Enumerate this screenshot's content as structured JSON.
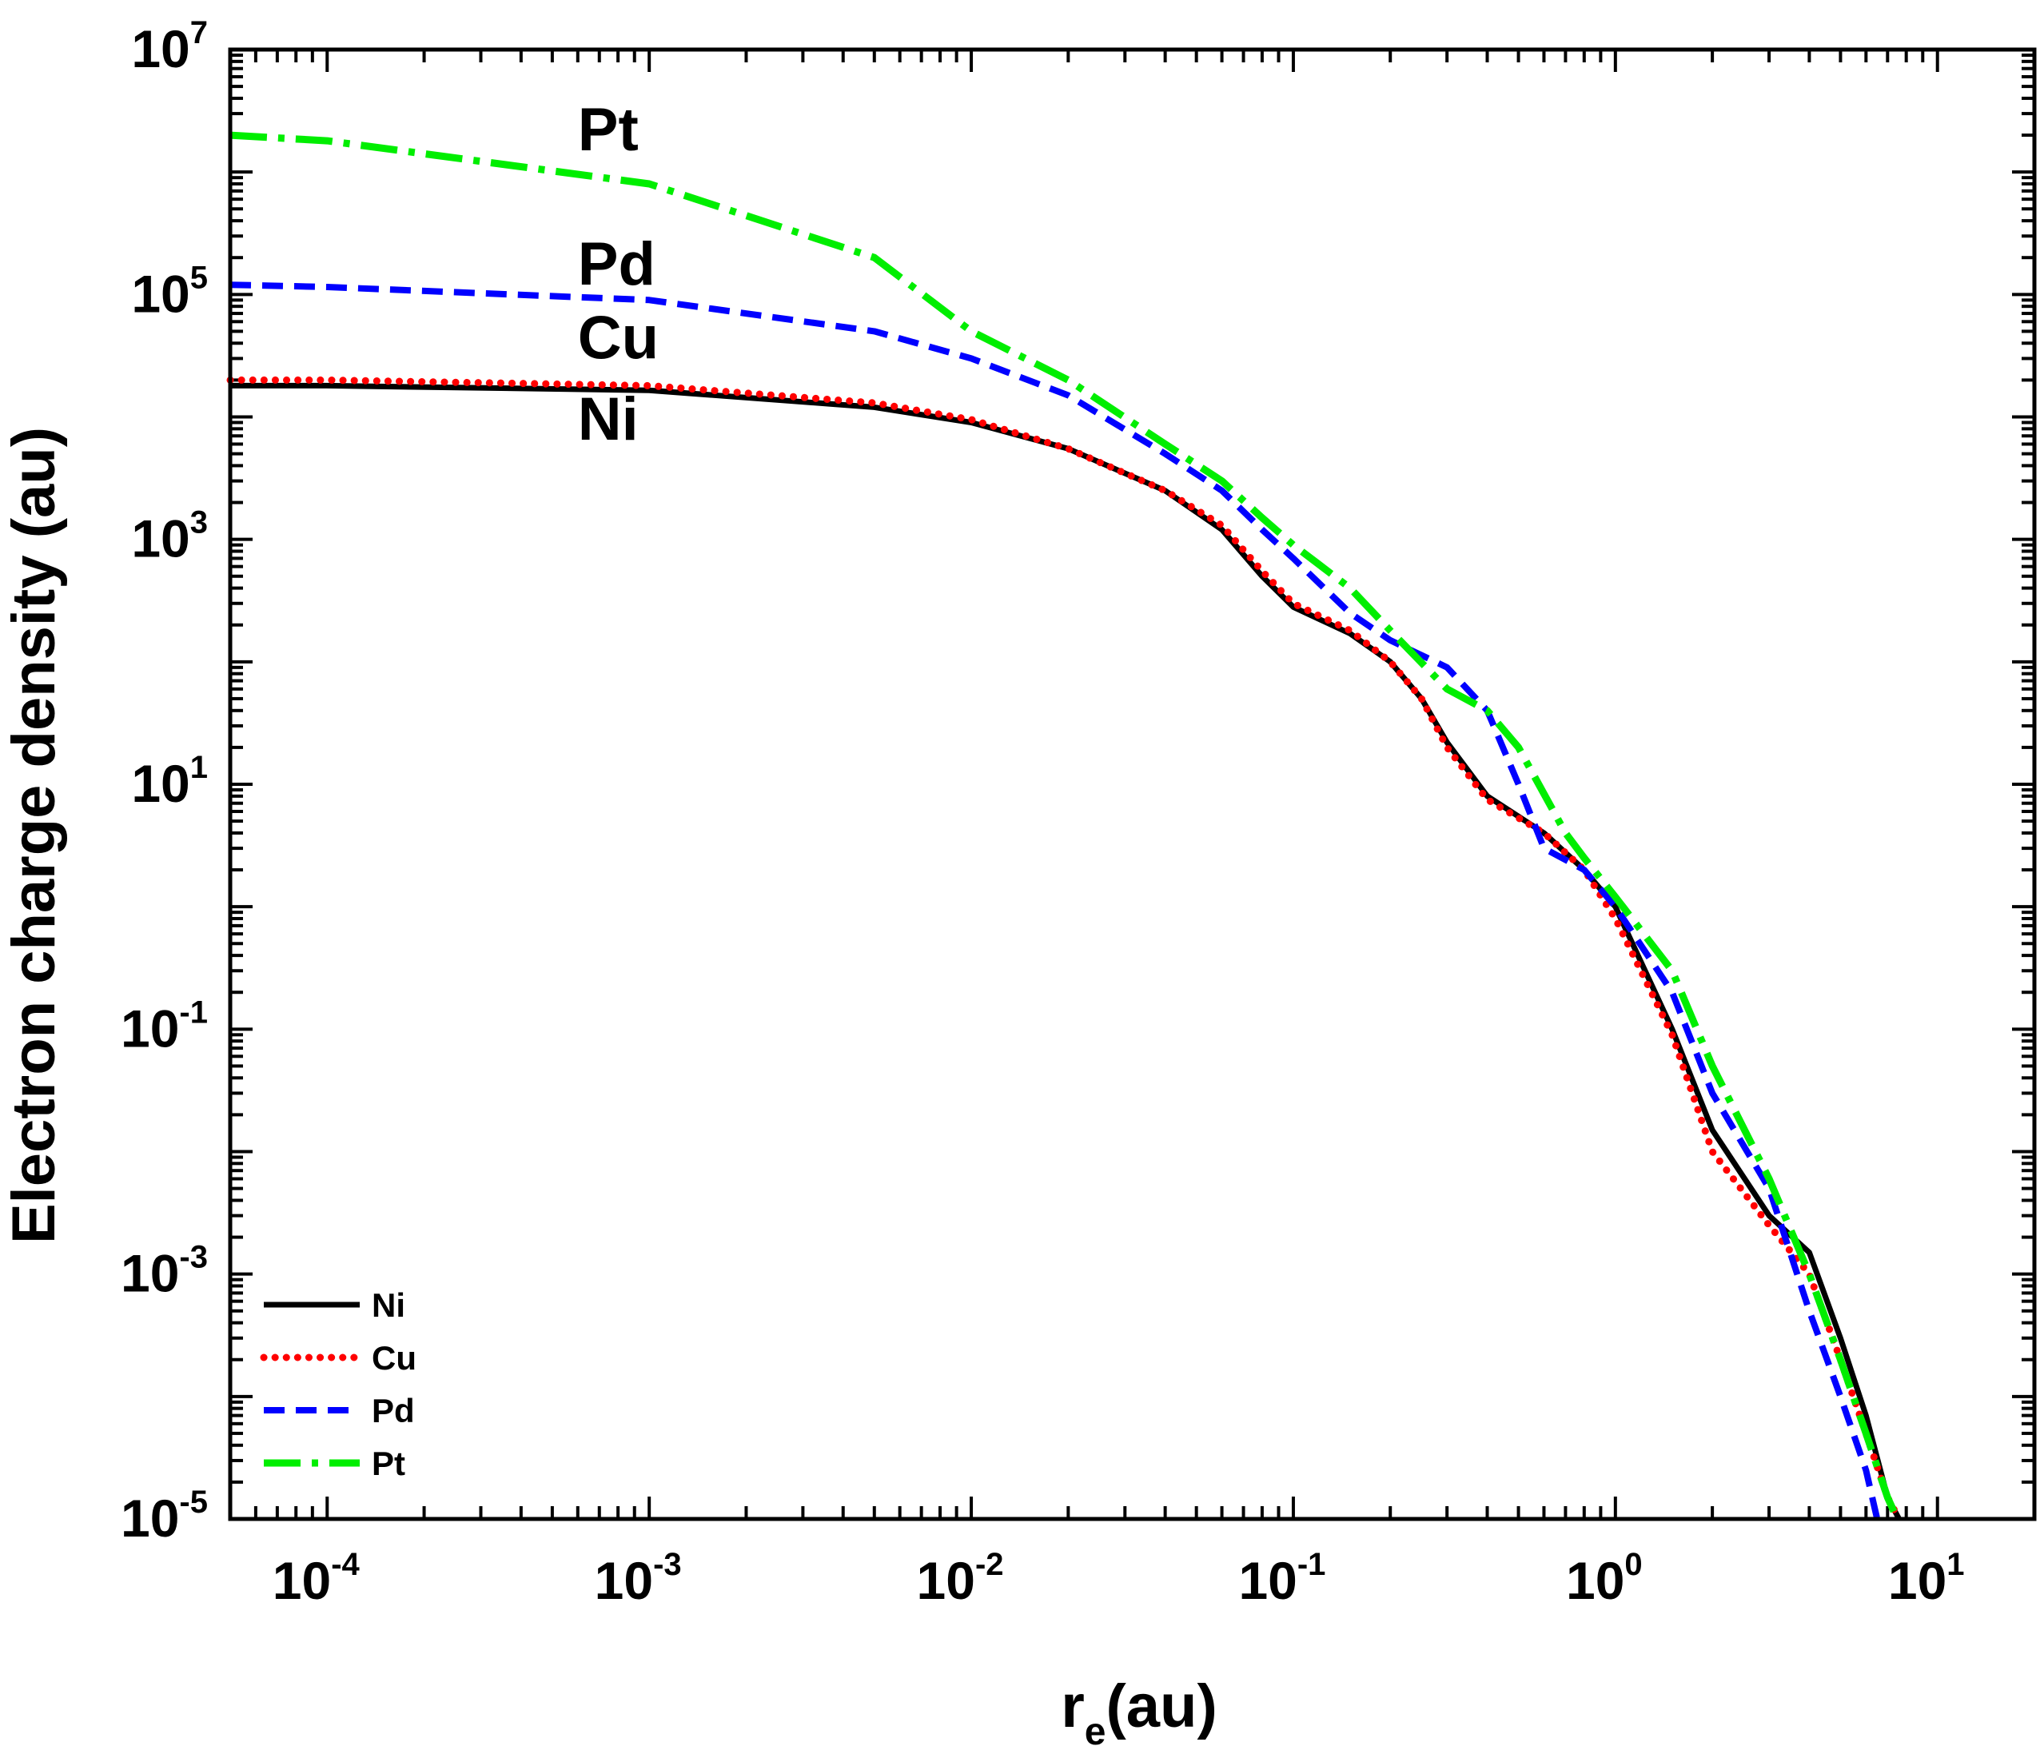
{
  "chart_data": {
    "type": "line",
    "title": "",
    "xlabel": {
      "main": "r",
      "sub": "e",
      "unit": "(au)"
    },
    "ylabel": "Electron charge density (au)",
    "xscale": "log",
    "yscale": "log",
    "xlim": [
      5e-05,
      20
    ],
    "ylim": [
      1e-05,
      10000000
    ],
    "grid": false,
    "legend_position": "bottom-left",
    "x_ticks": [
      {
        "value": 0.0001,
        "base": "10",
        "exp": "-4"
      },
      {
        "value": 0.001,
        "base": "10",
        "exp": "-3"
      },
      {
        "value": 0.01,
        "base": "10",
        "exp": "-2"
      },
      {
        "value": 0.1,
        "base": "10",
        "exp": "-1"
      },
      {
        "value": 1,
        "base": "10",
        "exp": "0"
      },
      {
        "value": 10,
        "base": "10",
        "exp": "1"
      }
    ],
    "y_ticks": [
      {
        "value": 1e-05,
        "base": "10",
        "exp": "-5"
      },
      {
        "value": 0.001,
        "base": "10",
        "exp": "-3"
      },
      {
        "value": 0.1,
        "base": "10",
        "exp": "-1"
      },
      {
        "value": 10,
        "base": "10",
        "exp": "1"
      },
      {
        "value": 1000,
        "base": "10",
        "exp": "3"
      },
      {
        "value": 100000,
        "base": "10",
        "exp": "5"
      },
      {
        "value": 10000000,
        "base": "10",
        "exp": "7"
      }
    ],
    "series": [
      {
        "name": "Ni",
        "color": "#000000",
        "style": "solid",
        "points": [
          [
            5e-05,
            18000
          ],
          [
            0.0001,
            18000
          ],
          [
            0.001,
            16500
          ],
          [
            0.005,
            12000
          ],
          [
            0.01,
            9000
          ],
          [
            0.02,
            5500
          ],
          [
            0.04,
            2500
          ],
          [
            0.06,
            1200
          ],
          [
            0.08,
            500
          ],
          [
            0.1,
            280
          ],
          [
            0.15,
            170
          ],
          [
            0.2,
            100
          ],
          [
            0.25,
            50
          ],
          [
            0.3,
            22
          ],
          [
            0.4,
            8
          ],
          [
            0.6,
            4
          ],
          [
            0.8,
            2
          ],
          [
            1.0,
            1
          ],
          [
            1.5,
            0.1
          ],
          [
            2.0,
            0.015
          ],
          [
            3.0,
            0.003
          ],
          [
            4.0,
            0.0015
          ],
          [
            5.0,
            0.0003
          ],
          [
            6.0,
            7e-05
          ],
          [
            7.0,
            1.5e-05
          ],
          [
            7.6,
            1e-05
          ]
        ]
      },
      {
        "name": "Cu",
        "color": "#ff0000",
        "style": "dotted",
        "points": [
          [
            5e-05,
            20000
          ],
          [
            0.0001,
            20000
          ],
          [
            0.001,
            18000
          ],
          [
            0.005,
            13000
          ],
          [
            0.01,
            9500
          ],
          [
            0.02,
            5500
          ],
          [
            0.04,
            2500
          ],
          [
            0.06,
            1300
          ],
          [
            0.08,
            550
          ],
          [
            0.1,
            300
          ],
          [
            0.15,
            180
          ],
          [
            0.2,
            100
          ],
          [
            0.25,
            50
          ],
          [
            0.3,
            20
          ],
          [
            0.4,
            7.5
          ],
          [
            0.6,
            4
          ],
          [
            0.8,
            2
          ],
          [
            1.0,
            0.8
          ],
          [
            1.5,
            0.09
          ],
          [
            2.0,
            0.01
          ],
          [
            3.0,
            0.0025
          ],
          [
            4.0,
            0.001
          ],
          [
            5.0,
            0.0002
          ],
          [
            6.0,
            5e-05
          ],
          [
            7.0,
            1.5e-05
          ],
          [
            7.6,
            1e-05
          ]
        ]
      },
      {
        "name": "Pd",
        "color": "#0000ff",
        "style": "dashed",
        "points": [
          [
            5e-05,
            120000
          ],
          [
            0.0001,
            115000
          ],
          [
            0.001,
            90000
          ],
          [
            0.005,
            50000
          ],
          [
            0.01,
            30000
          ],
          [
            0.02,
            15000
          ],
          [
            0.04,
            5000
          ],
          [
            0.06,
            2500
          ],
          [
            0.08,
            1200
          ],
          [
            0.1,
            700
          ],
          [
            0.15,
            250
          ],
          [
            0.2,
            150
          ],
          [
            0.3,
            90
          ],
          [
            0.4,
            40
          ],
          [
            0.5,
            10
          ],
          [
            0.6,
            3
          ],
          [
            0.8,
            2
          ],
          [
            1.0,
            1
          ],
          [
            1.5,
            0.2
          ],
          [
            2.0,
            0.03
          ],
          [
            3.0,
            0.005
          ],
          [
            4.0,
            0.0005
          ],
          [
            5.0,
            0.0001
          ],
          [
            6.0,
            2.5e-05
          ],
          [
            6.5,
            1e-05
          ]
        ]
      },
      {
        "name": "Pt",
        "color": "#00ee00",
        "style": "dashdot",
        "points": [
          [
            5e-05,
            2000000
          ],
          [
            0.0001,
            1800000
          ],
          [
            0.001,
            800000
          ],
          [
            0.005,
            200000
          ],
          [
            0.01,
            50000
          ],
          [
            0.02,
            20000
          ],
          [
            0.04,
            6000
          ],
          [
            0.06,
            3000
          ],
          [
            0.08,
            1500
          ],
          [
            0.1,
            900
          ],
          [
            0.15,
            400
          ],
          [
            0.2,
            180
          ],
          [
            0.3,
            60
          ],
          [
            0.4,
            40
          ],
          [
            0.5,
            20
          ],
          [
            0.7,
            4
          ],
          [
            0.8,
            2.5
          ],
          [
            1.0,
            1.2
          ],
          [
            1.5,
            0.3
          ],
          [
            2.0,
            0.05
          ],
          [
            3.0,
            0.006
          ],
          [
            4.0,
            0.001
          ],
          [
            5.0,
            0.0002
          ],
          [
            6.0,
            5e-05
          ],
          [
            7.0,
            1.5e-05
          ],
          [
            7.5,
            1e-05
          ]
        ]
      }
    ],
    "annotations": [
      {
        "text": "Pt",
        "x": 0.0006,
        "y": 1500000
      },
      {
        "text": "Pd",
        "x": 0.0006,
        "y": 120000
      },
      {
        "text": "Cu",
        "x": 0.0006,
        "y": 30000
      },
      {
        "text": "Ni",
        "x": 0.0006,
        "y": 6500
      }
    ]
  }
}
